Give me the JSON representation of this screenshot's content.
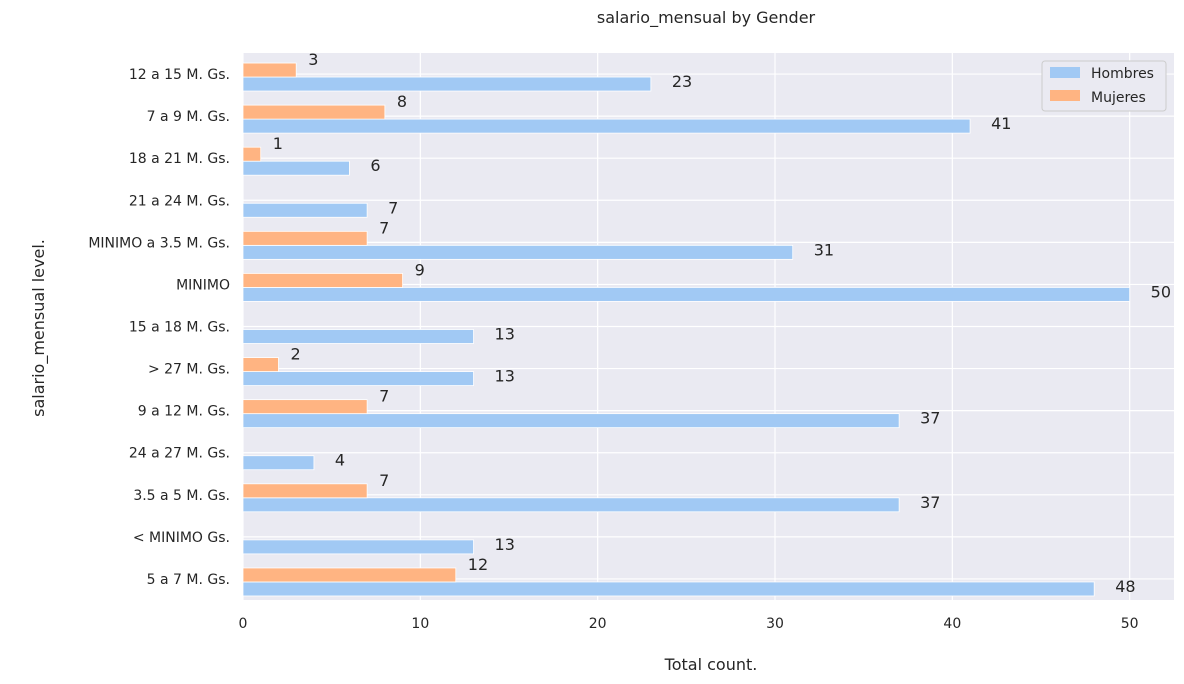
{
  "chart_data": {
    "type": "bar",
    "orientation": "horizontal",
    "title": "salario_mensual by Gender",
    "xlabel": "Total count.",
    "ylabel": "salario_mensual level.",
    "categories": [
      "12 a 15 M. Gs.",
      "7 a 9 M. Gs.",
      "18 a 21 M. Gs.",
      "21 a 24 M. Gs.",
      "MINIMO a 3.5 M. Gs.",
      "MINIMO",
      "15 a 18 M. Gs.",
      "> 27 M. Gs.",
      "9 a 12 M. Gs.",
      "24 a 27 M. Gs.",
      "3.5 a 5 M. Gs.",
      "< MINIMO Gs.",
      "5 a 7 M. Gs."
    ],
    "series": [
      {
        "name": "Hombres",
        "color": "#a1c9f4",
        "values": [
          23,
          41,
          6,
          7,
          31,
          50,
          13,
          13,
          37,
          4,
          37,
          13,
          48
        ]
      },
      {
        "name": "Mujeres",
        "color": "#ffb482",
        "values": [
          3,
          8,
          1,
          null,
          7,
          9,
          null,
          2,
          7,
          null,
          7,
          null,
          12
        ]
      }
    ],
    "xticks": [
      "0",
      "10",
      "20",
      "30",
      "40",
      "50"
    ],
    "xlim": [
      0,
      52.5
    ],
    "grid": true,
    "legend": "top-right"
  }
}
